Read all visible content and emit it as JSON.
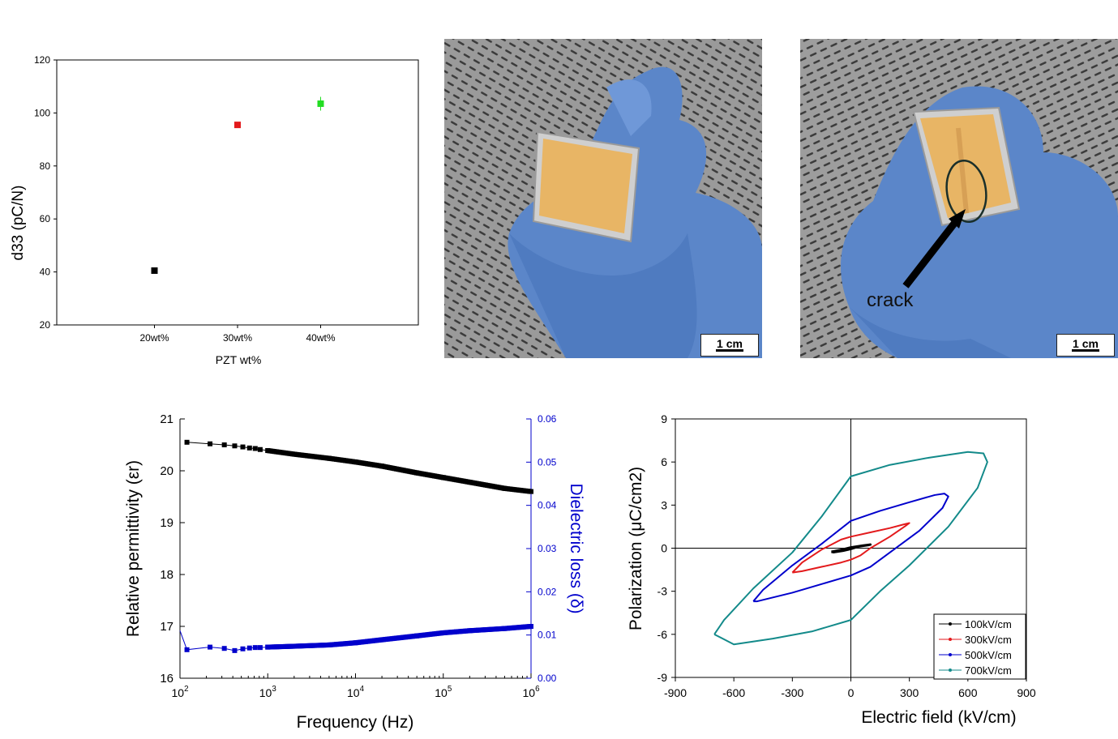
{
  "chart_data": [
    {
      "type": "scatter",
      "title": "",
      "xlabel": "PZT wt%",
      "ylabel": "d33 (pC/N)",
      "categories": [
        "20wt%",
        "30wt%",
        "40wt%"
      ],
      "values": [
        40.5,
        95.5,
        103.5
      ],
      "error": [
        0.5,
        1,
        2.6
      ],
      "colors": [
        "#000000",
        "#e31a1c",
        "#22dd22"
      ],
      "ylim": [
        20,
        120
      ],
      "yticks": [
        20,
        40,
        60,
        80,
        100,
        120
      ]
    },
    {
      "type": "scatter",
      "title": "",
      "xlabel": "Frequency (Hz)",
      "ylabel": "Relative permittivity (εr)",
      "y2label": "Dielectric loss (δ)",
      "xscale": "log",
      "xlim": [
        100,
        1000000
      ],
      "xticks": [
        "10^2",
        "10^3",
        "10^4",
        "10^5",
        "10^6"
      ],
      "ylim": [
        16,
        21
      ],
      "yticks": [
        "16",
        "17",
        "18",
        "19",
        "20",
        "21"
      ],
      "y2lim": [
        0,
        0.06
      ],
      "y2ticks": [
        "0.00",
        "0.01",
        "0.02",
        "0.03",
        "0.04",
        "0.05",
        "0.06"
      ],
      "series": [
        {
          "axis": "left",
          "color": "#000000",
          "x": [
            120,
            220,
            320,
            420,
            520,
            620,
            720,
            820,
            1000,
            2000,
            5000,
            10000,
            20000,
            50000,
            100000,
            200000,
            500000,
            1000000
          ],
          "y": [
            20.55,
            20.52,
            20.5,
            20.48,
            20.46,
            20.44,
            20.43,
            20.41,
            20.39,
            20.32,
            20.24,
            20.17,
            20.09,
            19.96,
            19.87,
            19.78,
            19.66,
            19.6
          ]
        },
        {
          "axis": "right",
          "color": "#0000cc",
          "x": [
            100,
            120,
            220,
            320,
            420,
            520,
            620,
            720,
            820,
            1000,
            2000,
            5000,
            10000,
            20000,
            50000,
            100000,
            200000,
            500000,
            1000000
          ],
          "y": [
            0.011,
            0.0066,
            0.0072,
            0.0069,
            0.0064,
            0.0068,
            0.007,
            0.0071,
            0.0071,
            0.0072,
            0.0074,
            0.0077,
            0.0082,
            0.0089,
            0.0098,
            0.0105,
            0.011,
            0.0115,
            0.012
          ]
        }
      ]
    },
    {
      "type": "line",
      "title": "",
      "xlabel": "Electric field (kV/cm)",
      "ylabel": "Polarization (μC/cm2)",
      "xlim": [
        -900,
        900
      ],
      "xticks": [
        "-900",
        "-600",
        "-300",
        "0",
        "300",
        "600",
        "900"
      ],
      "ylim": [
        -9,
        9
      ],
      "yticks": [
        "-9",
        "-6",
        "-3",
        "0",
        "3",
        "6",
        "9"
      ],
      "legend_position": "bottom-right",
      "series": [
        {
          "name": "100kV/cm",
          "color": "#000000",
          "x": [
            -100,
            -60,
            0,
            60,
            100,
            90,
            40,
            0,
            -40,
            -90,
            -100
          ],
          "y": [
            -0.25,
            -0.15,
            0.05,
            0.18,
            0.25,
            0.22,
            0.12,
            -0.05,
            -0.18,
            -0.28,
            -0.25
          ]
        },
        {
          "name": "300kV/cm",
          "color": "#e31a1c",
          "x": [
            -300,
            -250,
            -150,
            -50,
            0,
            100,
            200,
            270,
            300,
            280,
            200,
            100,
            50,
            0,
            -50,
            -150,
            -250,
            -300
          ],
          "y": [
            -1.7,
            -1.0,
            -0.1,
            0.6,
            0.8,
            1.1,
            1.4,
            1.65,
            1.75,
            1.55,
            0.8,
            0.0,
            -0.5,
            -0.8,
            -1.0,
            -1.3,
            -1.6,
            -1.7
          ]
        },
        {
          "name": "500kV/cm",
          "color": "#0000cc",
          "x": [
            -500,
            -450,
            -300,
            -150,
            0,
            150,
            300,
            430,
            480,
            500,
            470,
            350,
            200,
            100,
            0,
            -150,
            -300,
            -480,
            -500
          ],
          "y": [
            -3.7,
            -2.9,
            -1.2,
            0.3,
            1.9,
            2.6,
            3.2,
            3.7,
            3.8,
            3.6,
            2.8,
            1.2,
            -0.3,
            -1.3,
            -1.9,
            -2.5,
            -3.1,
            -3.7,
            -3.7
          ]
        },
        {
          "name": "700kV/cm",
          "color": "#138a8a",
          "x": [
            -700,
            -650,
            -500,
            -300,
            -150,
            0,
            200,
            400,
            600,
            680,
            700,
            650,
            500,
            300,
            150,
            0,
            -200,
            -400,
            -600,
            -700
          ],
          "y": [
            -6.0,
            -5.0,
            -2.8,
            -0.3,
            2.2,
            5.0,
            5.8,
            6.3,
            6.7,
            6.6,
            6.0,
            4.2,
            1.5,
            -1.2,
            -3.0,
            -5.0,
            -5.8,
            -6.3,
            -6.7,
            -6.0
          ]
        }
      ]
    }
  ],
  "photos": {
    "left": {
      "scale_label": "1 cm"
    },
    "right": {
      "scale_label": "1 cm",
      "annotation": "crack"
    }
  },
  "colors": {
    "glove": "#5b86c9",
    "film": "#e8b565",
    "foil": "#c8c8c8",
    "background": "#8a8a8a"
  }
}
